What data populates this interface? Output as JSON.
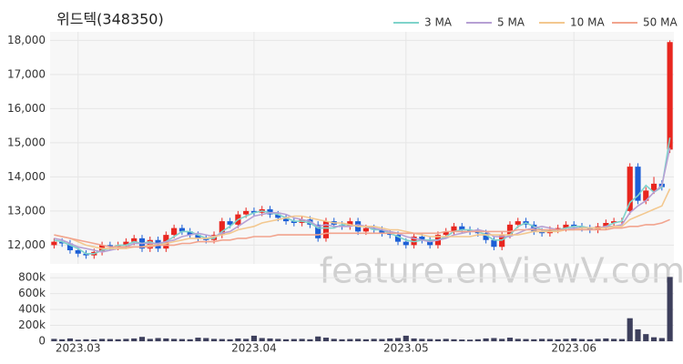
{
  "chart_data": {
    "type": "candlestick",
    "title": "위드텍(348350)",
    "watermark": "feature.enViewV.com",
    "categories": [
      null,
      null,
      null,
      "2023.03",
      null,
      null,
      null,
      null,
      null,
      null,
      null,
      null,
      null,
      null,
      null,
      null,
      null,
      null,
      null,
      null,
      null,
      null,
      null,
      null,
      null,
      "2023.04",
      null,
      null,
      null,
      null,
      null,
      null,
      null,
      null,
      null,
      null,
      null,
      null,
      null,
      null,
      null,
      null,
      null,
      null,
      "2023.05",
      null,
      null,
      null,
      null,
      null,
      null,
      null,
      null,
      null,
      null,
      null,
      null,
      null,
      null,
      null,
      null,
      null,
      null,
      null,
      null,
      "2023.06",
      null,
      null,
      null,
      null,
      null,
      null,
      null,
      null,
      null,
      null,
      null,
      null
    ],
    "open": [
      12000,
      12100,
      12050,
      11850,
      11750,
      11700,
      11800,
      12000,
      11950,
      12000,
      12100,
      12200,
      11900,
      12150,
      11900,
      12300,
      12500,
      12400,
      12300,
      12200,
      12150,
      12300,
      12700,
      12600,
      12900,
      13000,
      12950,
      13050,
      12900,
      12800,
      12700,
      12650,
      12750,
      12600,
      12200,
      12700,
      12600,
      12550,
      12700,
      12400,
      12500,
      12450,
      12350,
      12300,
      12100,
      12000,
      12250,
      12150,
      12000,
      12300,
      12400,
      12550,
      12450,
      12400,
      12350,
      12150,
      11950,
      12300,
      12600,
      12700,
      12600,
      12400,
      12350,
      12450,
      12500,
      12600,
      12550,
      12500,
      12450,
      12550,
      12650,
      12700,
      13000,
      14300,
      13300,
      13600,
      13800,
      14800
    ],
    "high": [
      12200,
      12200,
      12150,
      11950,
      11850,
      11900,
      12100,
      12100,
      12100,
      12200,
      12300,
      12300,
      12250,
      12250,
      12400,
      12600,
      12600,
      12500,
      12400,
      12300,
      12400,
      12800,
      12800,
      13000,
      13100,
      13100,
      13150,
      13150,
      13000,
      12900,
      12800,
      12850,
      12850,
      12700,
      12800,
      12800,
      12700,
      12800,
      12800,
      12600,
      12600,
      12550,
      12450,
      12400,
      12200,
      12350,
      12350,
      12250,
      12400,
      12500,
      12650,
      12650,
      12550,
      12500,
      12450,
      12250,
      12400,
      12700,
      12800,
      12800,
      12700,
      12500,
      12550,
      12600,
      12700,
      12700,
      12650,
      12600,
      12650,
      12750,
      12800,
      12800,
      14400,
      14400,
      13700,
      14000,
      13900,
      18000
    ],
    "low": [
      11900,
      11950,
      11750,
      11650,
      11600,
      11600,
      11700,
      11850,
      11850,
      11900,
      12000,
      11800,
      11800,
      11800,
      11800,
      12200,
      12300,
      12200,
      12100,
      12050,
      12050,
      12200,
      12500,
      12500,
      12800,
      12850,
      12850,
      12800,
      12700,
      12600,
      12550,
      12550,
      12500,
      12100,
      12100,
      12500,
      12450,
      12450,
      12300,
      12300,
      12350,
      12250,
      12200,
      12000,
      11900,
      11900,
      12050,
      11900,
      11900,
      12200,
      12300,
      12350,
      12300,
      12250,
      12050,
      11850,
      11850,
      12200,
      12500,
      12500,
      12300,
      12250,
      12250,
      12350,
      12400,
      12450,
      12400,
      12350,
      12350,
      12450,
      12550,
      12600,
      12900,
      13200,
      13200,
      13500,
      13600,
      14700
    ],
    "close": [
      12100,
      12050,
      11850,
      11750,
      11700,
      11800,
      12000,
      11950,
      12000,
      12100,
      12200,
      11900,
      12150,
      11900,
      12300,
      12500,
      12400,
      12300,
      12200,
      12150,
      12300,
      12700,
      12600,
      12900,
      13000,
      12950,
      13050,
      12900,
      12800,
      12700,
      12650,
      12750,
      12600,
      12200,
      12700,
      12600,
      12550,
      12700,
      12400,
      12500,
      12450,
      12350,
      12300,
      12100,
      12000,
      12250,
      12150,
      12000,
      12300,
      12400,
      12550,
      12450,
      12400,
      12350,
      12150,
      11950,
      12300,
      12600,
      12700,
      12600,
      12400,
      12350,
      12450,
      12500,
      12600,
      12550,
      12500,
      12450,
      12550,
      12650,
      12700,
      12700,
      14300,
      13300,
      13600,
      13800,
      13700,
      17950
    ],
    "volume": [
      30000,
      25000,
      35000,
      20000,
      25000,
      22000,
      30000,
      28000,
      25000,
      30000,
      35000,
      55000,
      30000,
      40000,
      35000,
      30000,
      28000,
      25000,
      45000,
      40000,
      30000,
      28000,
      25000,
      35000,
      30000,
      70000,
      40000,
      35000,
      30000,
      25000,
      28000,
      30000,
      25000,
      60000,
      45000,
      30000,
      25000,
      28000,
      30000,
      25000,
      30000,
      28000,
      35000,
      40000,
      70000,
      35000,
      30000,
      28000,
      25000,
      30000,
      25000,
      22000,
      20000,
      25000,
      35000,
      40000,
      30000,
      45000,
      30000,
      28000,
      25000,
      30000,
      28000,
      25000,
      30000,
      35000,
      28000,
      25000,
      30000,
      35000,
      30000,
      28000,
      290000,
      150000,
      90000,
      50000,
      40000,
      810000
    ],
    "up_color": "#e8261f",
    "down_color": "#1c5fd6",
    "volume_color": "#3d3f5c",
    "ylim": [
      11450,
      18250
    ],
    "yticks": [
      {
        "value": 12000,
        "label": "12,000"
      },
      {
        "value": 13000,
        "label": "13,000"
      },
      {
        "value": 14000,
        "label": "14,000"
      },
      {
        "value": 15000,
        "label": "15,000"
      },
      {
        "value": 16000,
        "label": "16,000"
      },
      {
        "value": 17000,
        "label": "17,000"
      },
      {
        "value": 18000,
        "label": "18,000"
      }
    ],
    "volume_ylim": [
      0,
      860000
    ],
    "volume_yticks": [
      0,
      {
        "value": 200000,
        "label": "200k"
      },
      {
        "value": 400000,
        "label": "400k"
      },
      {
        "value": 600000,
        "label": "600k"
      },
      {
        "value": 800000,
        "label": "800k"
      }
    ],
    "grid": true,
    "legend": "top-right",
    "series": [
      {
        "name": "3 MA",
        "color": "#7fd3cb",
        "values": [
          12150,
          12100,
          12000,
          11900,
          11750,
          11750,
          11850,
          11900,
          12000,
          12000,
          12100,
          12050,
          12100,
          12000,
          12100,
          12250,
          12400,
          12400,
          12300,
          12200,
          12200,
          12400,
          12550,
          12750,
          12850,
          12950,
          13000,
          12950,
          12900,
          12800,
          12700,
          12700,
          12650,
          12500,
          12500,
          12500,
          12600,
          12600,
          12550,
          12550,
          12450,
          12450,
          12350,
          12250,
          12150,
          12100,
          12150,
          12150,
          12150,
          12250,
          12400,
          12450,
          12450,
          12400,
          12300,
          12150,
          12150,
          12300,
          12550,
          12650,
          12550,
          12450,
          12400,
          12450,
          12500,
          12550,
          12550,
          12500,
          12500,
          12550,
          12650,
          12700,
          13250,
          13450,
          13750,
          13550,
          13700,
          15150
        ]
      },
      {
        "name": "5 MA",
        "color": "#b7a0d4",
        "values": [
          12200,
          12150,
          12050,
          11950,
          11900,
          11850,
          11800,
          11850,
          11900,
          11950,
          12050,
          12050,
          12050,
          12050,
          12100,
          12150,
          12250,
          12300,
          12350,
          12300,
          12250,
          12350,
          12400,
          12550,
          12700,
          12850,
          12900,
          12950,
          12950,
          12900,
          12800,
          12750,
          12700,
          12550,
          12600,
          12550,
          12550,
          12550,
          12600,
          12550,
          12500,
          12450,
          12400,
          12350,
          12250,
          12200,
          12150,
          12100,
          12150,
          12200,
          12300,
          12350,
          12400,
          12450,
          12400,
          12250,
          12250,
          12250,
          12350,
          12450,
          12500,
          12550,
          12500,
          12450,
          12450,
          12500,
          12500,
          12500,
          12500,
          12550,
          12550,
          12600,
          12950,
          13150,
          13300,
          13550,
          13750,
          14850
        ]
      },
      {
        "name": "10 MA",
        "color": "#f3c88f",
        "values": [
          12300,
          12250,
          12200,
          12100,
          12000,
          11950,
          11900,
          11900,
          11900,
          11900,
          11950,
          11950,
          12000,
          12000,
          12050,
          12100,
          12150,
          12200,
          12200,
          12200,
          12250,
          12300,
          12350,
          12450,
          12500,
          12550,
          12650,
          12700,
          12750,
          12800,
          12850,
          12850,
          12800,
          12750,
          12700,
          12650,
          12650,
          12600,
          12550,
          12550,
          12550,
          12500,
          12450,
          12450,
          12400,
          12350,
          12300,
          12250,
          12250,
          12250,
          12250,
          12250,
          12250,
          12300,
          12300,
          12300,
          12300,
          12300,
          12300,
          12350,
          12400,
          12400,
          12400,
          12400,
          12450,
          12450,
          12500,
          12500,
          12500,
          12500,
          12550,
          12550,
          12750,
          12850,
          12950,
          13050,
          13150,
          13650
        ]
      },
      {
        "name": "50 MA",
        "color": "#f2a48e",
        "values": [
          12300,
          12250,
          12200,
          12150,
          12100,
          12050,
          12000,
          11950,
          11950,
          11950,
          11950,
          11950,
          11950,
          12000,
          12000,
          12000,
          12050,
          12050,
          12100,
          12100,
          12100,
          12150,
          12150,
          12200,
          12200,
          12250,
          12250,
          12250,
          12300,
          12300,
          12300,
          12300,
          12300,
          12300,
          12350,
          12350,
          12350,
          12350,
          12350,
          12350,
          12350,
          12350,
          12350,
          12350,
          12350,
          12350,
          12350,
          12350,
          12350,
          12400,
          12400,
          12400,
          12400,
          12400,
          12400,
          12400,
          12400,
          12400,
          12450,
          12450,
          12450,
          12450,
          12450,
          12450,
          12450,
          12450,
          12450,
          12450,
          12450,
          12450,
          12500,
          12500,
          12550,
          12550,
          12600,
          12600,
          12650,
          12750
        ]
      }
    ]
  }
}
